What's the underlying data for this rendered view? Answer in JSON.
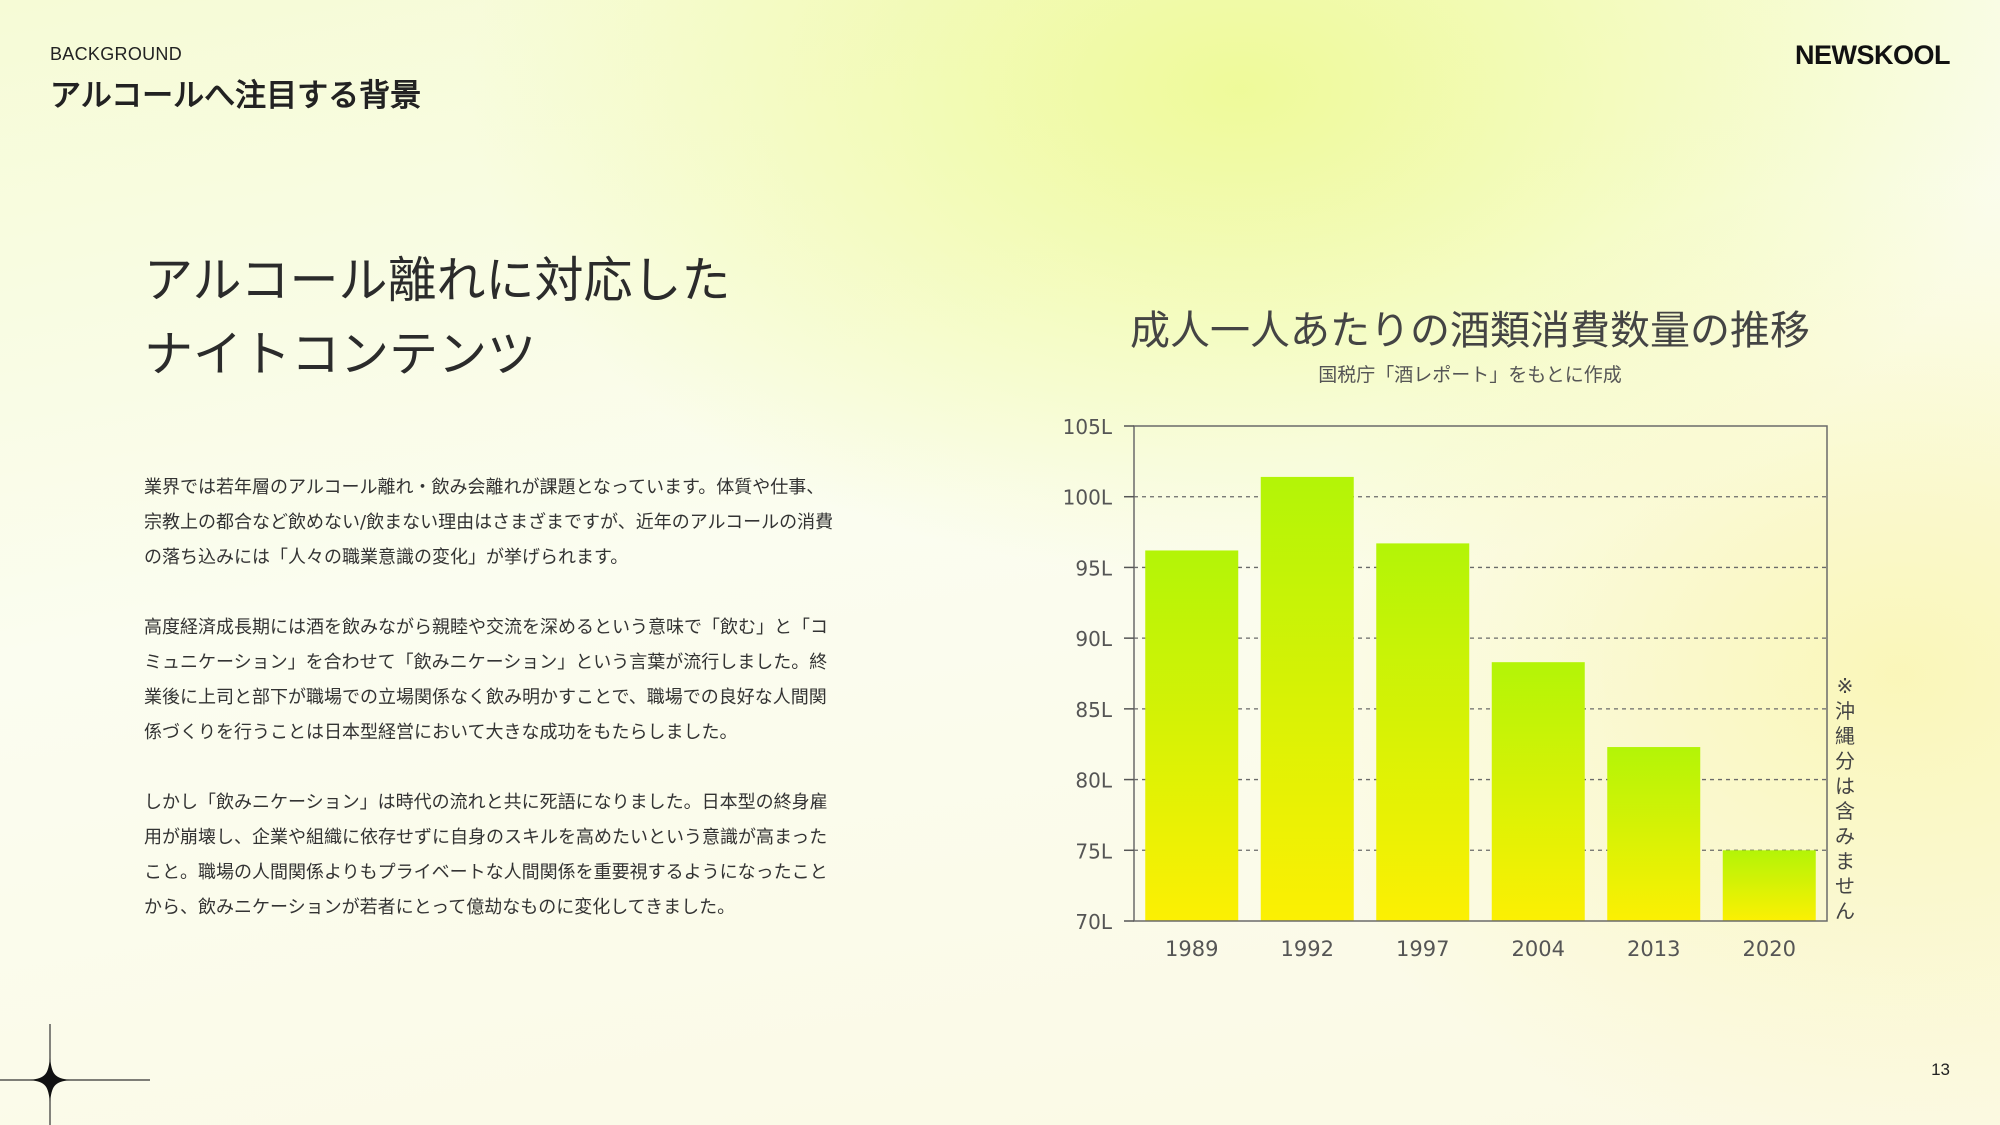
{
  "header": {
    "section_label": "BACKGROUND",
    "section_title": "アルコールへ注目する背景",
    "brand": "NEWSKOOL"
  },
  "headline": {
    "line1": "アルコール離れに対応した",
    "line2": "ナイトコンテンツ"
  },
  "body": {
    "p1": [
      "業界では若年層のアルコール離れ・飲み会離れが課題となっています。体質や仕事、",
      "宗教上の都合など飲めない/飲まない理由はさまざまですが、近年のアルコールの消費",
      "の落ち込みには「人々の職業意識の変化」が挙げられます。"
    ],
    "p2": [
      "高度経済成長期には酒を飲みながら親睦や交流を深めるという意味で「飲む」と「コ",
      "ミュニケーション」を合わせて「飲みニケーション」という言葉が流行しました。終",
      "業後に上司と部下が職場での立場関係なく飲み明かすことで、職場での良好な人間関",
      "係づくりを行うことは日本型経営において大きな成功をもたらしました。"
    ],
    "p3": [
      "しかし「飲みニケーション」は時代の流れと共に死語になりました。日本型の終身雇",
      "用が崩壊し、企業や組織に依存せずに自身のスキルを高めたいという意識が高まった",
      "こと。職場の人間関係よりもプライベートな人間関係を重要視するようになったこと",
      "から、飲みニケーションが若者にとって億劫なものに変化してきました。"
    ]
  },
  "chart_data": {
    "type": "bar",
    "title": "成人一人あたりの酒類消費数量の推移",
    "subtitle": "国税庁「酒レポート」をもとに作成",
    "categories": [
      "1989",
      "1992",
      "1997",
      "2004",
      "2013",
      "2020"
    ],
    "values": [
      96.2,
      101.4,
      96.7,
      88.3,
      82.3,
      75.0
    ],
    "ylim": [
      70,
      105
    ],
    "yticks": [
      70,
      75,
      80,
      85,
      90,
      95,
      100,
      105
    ],
    "ytick_labels": [
      "70L",
      "75L",
      "80L",
      "85L",
      "90L",
      "95L",
      "100L",
      "105L"
    ],
    "grid": "horizontal dashed",
    "bar_gradient": {
      "top": "#b3f407",
      "bottom": "#fcf003"
    },
    "footnote": "※沖縄分は含みません"
  },
  "footer": {
    "page_number": "13"
  }
}
